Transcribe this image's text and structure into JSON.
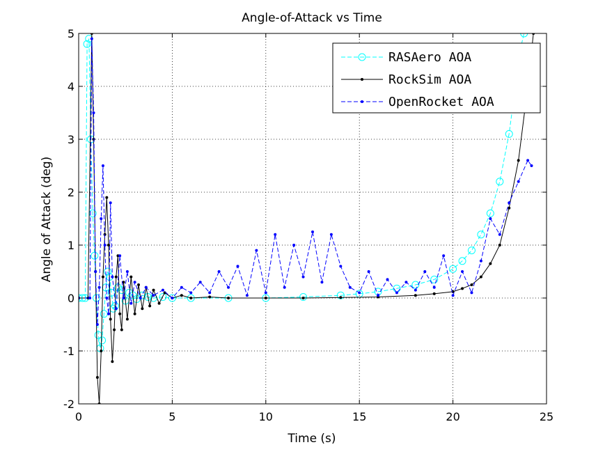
{
  "chart_data": {
    "type": "line",
    "title": "Angle-of-Attack vs Time",
    "xlabel": "Time (s)",
    "ylabel": "Angle of Attack (deg)",
    "xlim": [
      0,
      25
    ],
    "ylim": [
      -2,
      5
    ],
    "xticks": [
      0,
      5,
      10,
      15,
      20,
      25
    ],
    "yticks": [
      -2,
      -1,
      0,
      1,
      2,
      3,
      4,
      5
    ],
    "grid": true,
    "legend_position": "top-right",
    "series": [
      {
        "name": "RASAero AOA",
        "color": "#00ffff",
        "line_style": "dashed",
        "marker": "circle",
        "x": [
          0.0,
          0.2,
          0.35,
          0.45,
          0.55,
          0.65,
          0.75,
          0.85,
          0.95,
          1.05,
          1.15,
          1.25,
          1.35,
          1.45,
          1.55,
          1.65,
          1.75,
          1.85,
          1.95,
          2.1,
          2.3,
          2.5,
          2.7,
          2.9,
          3.1,
          3.4,
          3.7,
          4.0,
          4.5,
          5.0,
          6.0,
          8.0,
          10.0,
          12.0,
          14.0,
          15.0,
          16.0,
          17.0,
          18.0,
          19.0,
          20.0,
          20.5,
          21.0,
          21.5,
          22.0,
          22.5,
          23.0,
          23.3,
          23.6,
          23.8
        ],
        "y": [
          0.0,
          0.0,
          0.0,
          4.8,
          4.9,
          3.0,
          1.6,
          0.8,
          0.0,
          -0.7,
          -0.95,
          -0.8,
          -0.3,
          0.2,
          0.5,
          0.4,
          0.1,
          -0.2,
          -0.15,
          0.2,
          0.15,
          -0.05,
          0.1,
          0.05,
          -0.02,
          0.05,
          0.02,
          0.0,
          0.02,
          0.0,
          0.0,
          0.0,
          0.0,
          0.02,
          0.05,
          0.08,
          0.12,
          0.18,
          0.25,
          0.35,
          0.55,
          0.7,
          0.9,
          1.2,
          1.6,
          2.2,
          3.1,
          3.9,
          4.7,
          5.0
        ]
      },
      {
        "name": "RockSim AOA",
        "color": "#000000",
        "line_style": "solid",
        "marker": "point",
        "x": [
          0.0,
          0.5,
          0.7,
          0.8,
          0.9,
          1.0,
          1.1,
          1.2,
          1.3,
          1.4,
          1.5,
          1.6,
          1.7,
          1.8,
          1.9,
          2.0,
          2.1,
          2.2,
          2.3,
          2.4,
          2.6,
          2.8,
          3.0,
          3.2,
          3.4,
          3.6,
          3.8,
          4.0,
          4.3,
          4.6,
          5.0,
          5.5,
          6.0,
          7.0,
          8.0,
          10.0,
          12.0,
          14.0,
          16.0,
          18.0,
          19.0,
          20.0,
          20.5,
          21.0,
          21.5,
          22.0,
          22.5,
          23.0,
          23.5,
          24.0,
          24.3
        ],
        "y": [
          0.0,
          0.0,
          5.0,
          3.0,
          0.5,
          -1.5,
          -2.0,
          -1.0,
          0.4,
          1.2,
          1.9,
          1.0,
          -0.4,
          -1.2,
          -0.6,
          0.4,
          0.8,
          -0.3,
          -0.6,
          0.3,
          -0.4,
          0.4,
          -0.3,
          0.25,
          -0.2,
          0.2,
          -0.15,
          0.15,
          -0.1,
          0.1,
          0.0,
          0.05,
          0.0,
          0.02,
          0.0,
          0.0,
          0.0,
          0.01,
          0.02,
          0.05,
          0.08,
          0.12,
          0.18,
          0.25,
          0.4,
          0.65,
          1.0,
          1.7,
          2.6,
          4.0,
          5.0
        ]
      },
      {
        "name": "OpenRocket AOA",
        "color": "#0000ff",
        "line_style": "dashed",
        "marker": "point",
        "x": [
          0.0,
          0.6,
          0.7,
          0.8,
          0.9,
          1.0,
          1.1,
          1.2,
          1.3,
          1.4,
          1.5,
          1.6,
          1.7,
          1.8,
          2.0,
          2.2,
          2.4,
          2.6,
          2.8,
          3.0,
          3.3,
          3.6,
          4.0,
          4.5,
          5.0,
          5.5,
          6.0,
          6.5,
          7.0,
          7.5,
          8.0,
          8.5,
          9.0,
          9.5,
          10.0,
          10.5,
          11.0,
          11.5,
          12.0,
          12.5,
          13.0,
          13.5,
          14.0,
          14.5,
          15.0,
          15.5,
          16.0,
          16.5,
          17.0,
          17.5,
          18.0,
          18.5,
          19.0,
          19.5,
          20.0,
          20.5,
          21.0,
          21.5,
          22.0,
          22.5,
          23.0,
          23.5,
          24.0,
          24.2
        ],
        "y": [
          0.0,
          0.0,
          4.9,
          3.5,
          0.5,
          -0.5,
          0.2,
          1.5,
          2.5,
          1.0,
          0.0,
          -0.3,
          1.8,
          0.4,
          -0.2,
          0.8,
          0.0,
          0.5,
          -0.1,
          0.3,
          0.0,
          0.2,
          0.05,
          0.15,
          0.0,
          0.2,
          0.1,
          0.3,
          0.1,
          0.5,
          0.2,
          0.6,
          0.05,
          0.9,
          0.1,
          1.2,
          0.2,
          1.0,
          0.4,
          1.25,
          0.3,
          1.2,
          0.6,
          0.2,
          0.1,
          0.5,
          0.05,
          0.35,
          0.1,
          0.3,
          0.15,
          0.5,
          0.2,
          0.8,
          0.05,
          0.5,
          0.1,
          0.7,
          1.5,
          1.2,
          1.8,
          2.2,
          2.6,
          2.5
        ]
      }
    ]
  }
}
